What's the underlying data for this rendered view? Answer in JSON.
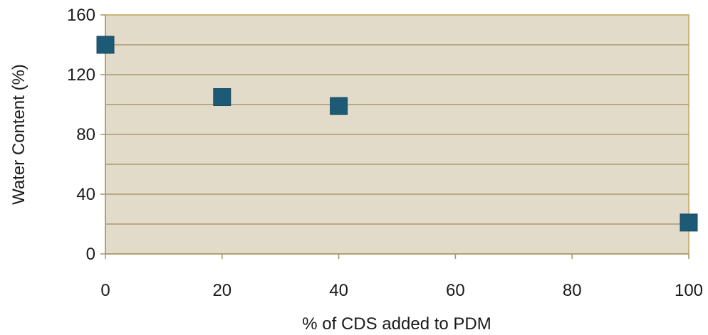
{
  "chart_data": {
    "type": "scatter",
    "xlabel": "% of CDS added to PDM",
    "ylabel": "Water Content (%)",
    "xlim": [
      0,
      100
    ],
    "ylim": [
      0,
      160
    ],
    "xticks": [
      0,
      20,
      40,
      60,
      80,
      100
    ],
    "yticks": [
      0,
      40,
      80,
      120,
      160
    ],
    "y_minor_gridlines": [
      20,
      60,
      100,
      140
    ],
    "grid": "horizontal",
    "legend": "none",
    "colors": {
      "plot_background": "#e3dbca",
      "plot_border": "#c9b47c",
      "gridline": "#a99a6f",
      "marker": "#1d5a75",
      "marker_edge": "#174a60"
    },
    "series": [
      {
        "x": [
          0,
          20,
          40,
          100
        ],
        "y": [
          140,
          105,
          99,
          21
        ]
      }
    ]
  }
}
